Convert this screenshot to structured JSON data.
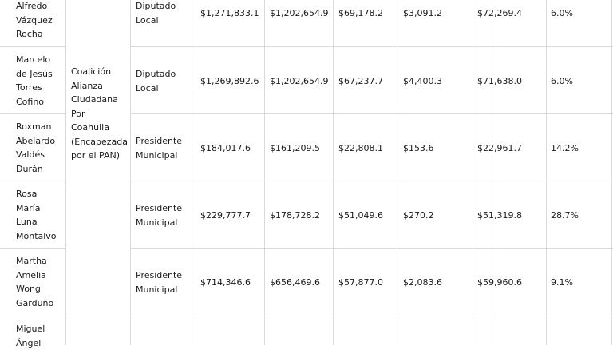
{
  "table": {
    "coalition_lines": [
      "Coalición",
      "Alianza",
      "Ciudadana",
      "Por",
      "Coahuila",
      "(Encabezada",
      "por el PAN)"
    ],
    "rows": [
      {
        "name_lines": [
          "Alfredo",
          "Vázquez",
          "Rocha"
        ],
        "cargo_lines": [
          "Diputado",
          "Local"
        ],
        "c1": "$1,271,833.1",
        "c2": "$1,202,654.9",
        "c3": "$69,178.2",
        "c4": "$3,091.2",
        "c5": "$72,269.4",
        "c6": "6.0%"
      },
      {
        "name_lines": [
          "Marcelo",
          "de Jesús",
          "Torres",
          "Cofino"
        ],
        "cargo_lines": [
          "Diputado",
          "Local"
        ],
        "c1": "$1,269,892.6",
        "c2": "$1,202,654.9",
        "c3": "$67,237.7",
        "c4": "$4,400.3",
        "c5": "$71,638.0",
        "c6": "6.0%"
      },
      {
        "name_lines": [
          "Roxman",
          "Abelardo",
          "Valdés",
          "Durán"
        ],
        "cargo_lines": [
          "Presidente",
          "Municipal"
        ],
        "c1": "$184,017.6",
        "c2": "$161,209.5",
        "c3": "$22,808.1",
        "c4": "$153.6",
        "c5": "$22,961.7",
        "c6": "14.2%"
      },
      {
        "name_lines": [
          "Rosa",
          "María",
          "Luna",
          "Montalvo"
        ],
        "cargo_lines": [
          "Presidente",
          "Municipal"
        ],
        "c1": "$229,777.7",
        "c2": "$178,728.2",
        "c3": "$51,049.6",
        "c4": "$270.2",
        "c5": "$51,319.8",
        "c6": "28.7%"
      },
      {
        "name_lines": [
          "Martha",
          "Amelia",
          "Wong",
          "Garduño"
        ],
        "cargo_lines": [
          "Presidente",
          "Municipal"
        ],
        "c1": "$714,346.6",
        "c2": "$656,469.6",
        "c3": "$57,877.0",
        "c4": "$2,083.6",
        "c5": "$59,960.6",
        "c6": "9.1%"
      },
      {
        "name_lines": [
          "Miguel",
          "Ángel"
        ],
        "cargo_lines": [],
        "c1": "",
        "c2": "",
        "c3": "",
        "c4": "",
        "c5": "",
        "c6": ""
      }
    ]
  }
}
